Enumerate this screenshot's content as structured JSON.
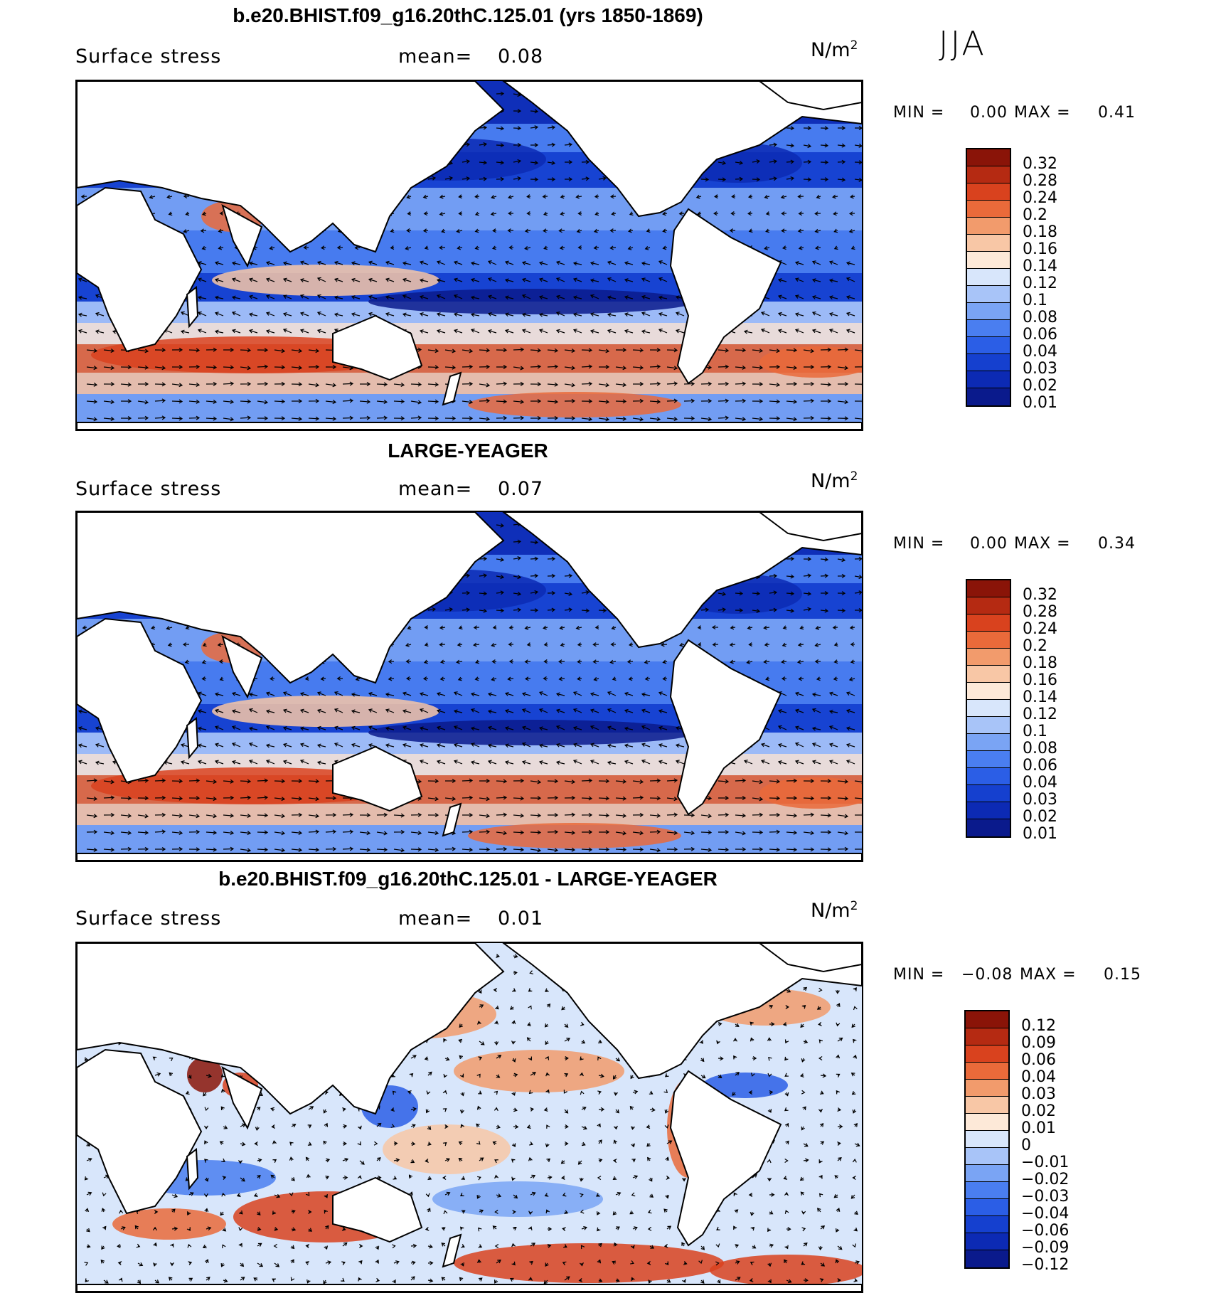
{
  "season": "JJA",
  "colors": {
    "scale13": [
      "#0a1a8c",
      "#0c2ab4",
      "#1540cf",
      "#2b5ee6",
      "#4a7ef0",
      "#7aa4f4",
      "#a8c4f8",
      "#d8e6fb",
      "#fde9d8",
      "#f8c7a6",
      "#f29b6c",
      "#ea6a3a",
      "#d9421e",
      "#b52a12",
      "#8a1408"
    ],
    "land": "#ffffff",
    "coast": "#000000"
  },
  "panels": [
    {
      "title": "b.e20.BHIST.f09_g16.20thC.125.01 (yrs 1850-1869)",
      "variable": "Surface stress",
      "mean_label": "mean=",
      "mean_value": "0.08",
      "unit_base": "N/m",
      "unit_exp": "2",
      "min_label": "MIN =",
      "min_value": "0.00",
      "max_label": "MAX =",
      "max_value": "0.41",
      "colorbar": [
        "0.32",
        "0.28",
        "0.24",
        "0.2",
        "0.18",
        "0.16",
        "0.14",
        "0.12",
        "0.1",
        "0.08",
        "0.06",
        "0.04",
        "0.03",
        "0.02",
        "0.01"
      ],
      "style": "abs"
    },
    {
      "title": "LARGE-YEAGER",
      "variable": "Surface stress",
      "mean_label": "mean=",
      "mean_value": "0.07",
      "unit_base": "N/m",
      "unit_exp": "2",
      "min_label": "MIN =",
      "min_value": "0.00",
      "max_label": "MAX =",
      "max_value": "0.34",
      "colorbar": [
        "0.32",
        "0.28",
        "0.24",
        "0.2",
        "0.18",
        "0.16",
        "0.14",
        "0.12",
        "0.1",
        "0.08",
        "0.06",
        "0.04",
        "0.03",
        "0.02",
        "0.01"
      ],
      "style": "abs"
    },
    {
      "title": "b.e20.BHIST.f09_g16.20thC.125.01 - LARGE-YEAGER",
      "variable": "Surface stress",
      "mean_label": "mean=",
      "mean_value": "0.01",
      "unit_base": "N/m",
      "unit_exp": "2",
      "min_label": "MIN =",
      "min_value": "−0.08",
      "max_label": "MAX =",
      "max_value": "0.15",
      "colorbar": [
        "0.12",
        "0.09",
        "0.06",
        "0.04",
        "0.03",
        "0.02",
        "0.01",
        "0",
        "−0.01",
        "−0.02",
        "−0.03",
        "−0.04",
        "−0.06",
        "−0.09",
        "−0.12"
      ],
      "style": "diff"
    }
  ]
}
